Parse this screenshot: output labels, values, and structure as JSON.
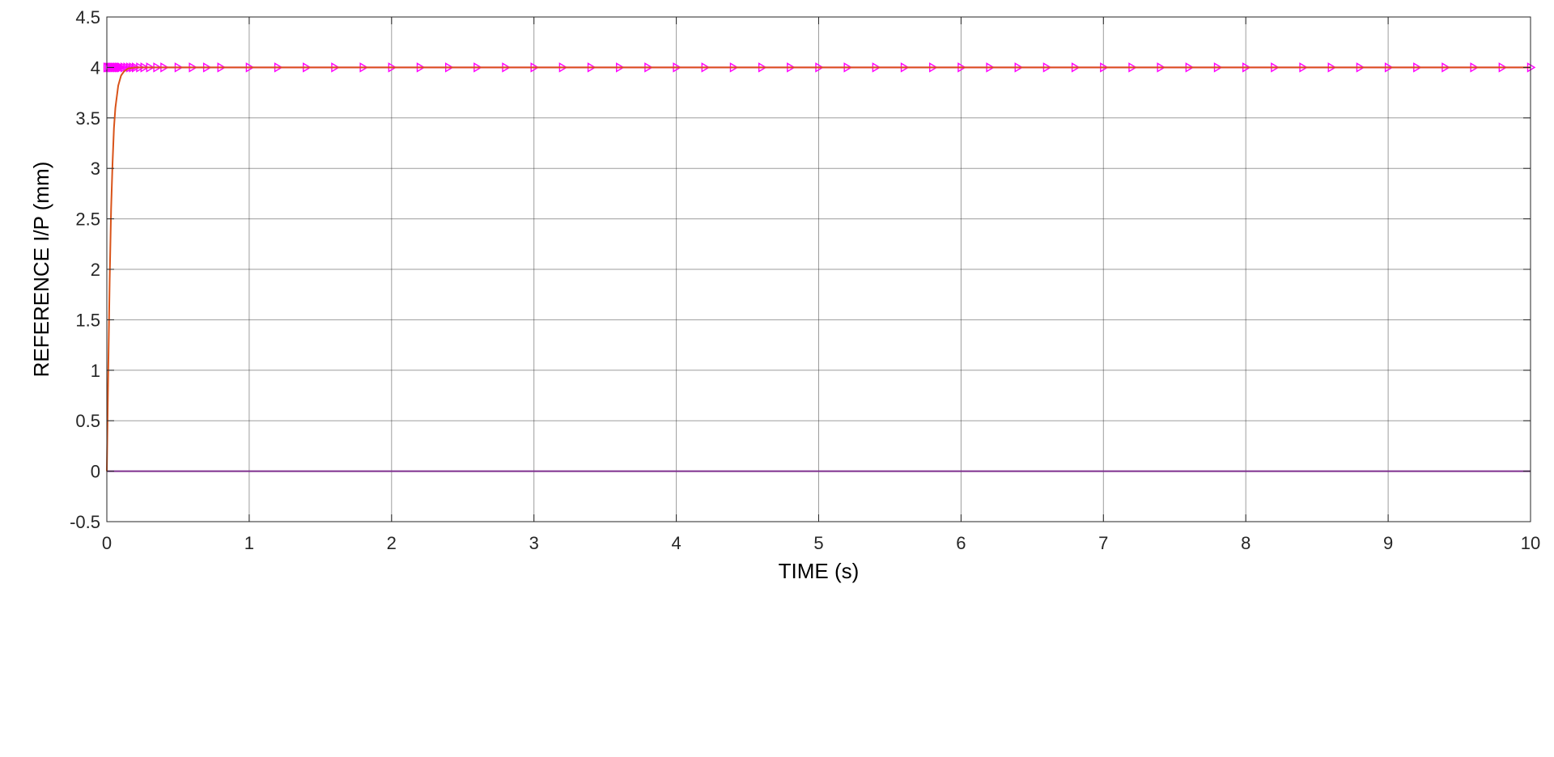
{
  "chart_data": {
    "type": "line",
    "xlabel": "TIME (s)",
    "ylabel": "REFERENCE I/P (mm)",
    "xlim": [
      0,
      10
    ],
    "ylim": [
      -0.5,
      4.5
    ],
    "x_ticks": [
      0,
      1,
      2,
      3,
      4,
      5,
      6,
      7,
      8,
      9,
      10
    ],
    "x_tick_labels": [
      "0",
      "1",
      "2",
      "3",
      "4",
      "5",
      "6",
      "7",
      "8",
      "9",
      "10"
    ],
    "y_ticks": [
      -0.5,
      0,
      0.5,
      1,
      1.5,
      2,
      2.5,
      3,
      3.5,
      4,
      4.5
    ],
    "y_tick_labels": [
      "-0.5",
      "0",
      "0.5",
      "1",
      "1.5",
      "2",
      "2.5",
      "3",
      "3.5",
      "4",
      "4.5"
    ],
    "grid": true,
    "series": [
      {
        "style": "solid line, no markers",
        "color": "#d95319",
        "description": "first-order step response rising from 0 and settling at 4",
        "x": [
          0,
          0.005,
          0.01,
          0.02,
          0.03,
          0.04,
          0.05,
          0.06,
          0.08,
          0.1,
          0.12,
          0.15,
          0.2,
          0.3,
          0.5,
          1,
          2,
          3,
          4,
          5,
          6,
          7,
          8,
          9,
          10
        ],
        "y": [
          0,
          0.5,
          1.0,
          1.9,
          2.6,
          3.05,
          3.4,
          3.6,
          3.82,
          3.92,
          3.96,
          3.99,
          4,
          4,
          4,
          4,
          4,
          4,
          4,
          4,
          4,
          4,
          4,
          4,
          4
        ]
      },
      {
        "style": "solid line with right-pointing triangle markers",
        "color": "#ff00ff",
        "description": "constant reference input at 4; markers densely packed near t=0 and every 0.2 s thereafter",
        "x": [
          0,
          0.01,
          0.02,
          0.03,
          0.04,
          0.05,
          0.06,
          0.07,
          0.08,
          0.09,
          0.1,
          0.12,
          0.14,
          0.16,
          0.18,
          0.2,
          0.23,
          0.26,
          0.3,
          0.35,
          0.4,
          0.5,
          0.6,
          0.7,
          0.8,
          1.0,
          1.2,
          1.4,
          1.6,
          1.8,
          2.0,
          2.2,
          2.4,
          2.6,
          2.8,
          3.0,
          3.2,
          3.4,
          3.6,
          3.8,
          4.0,
          4.2,
          4.4,
          4.6,
          4.8,
          5.0,
          5.2,
          5.4,
          5.6,
          5.8,
          6.0,
          6.2,
          6.4,
          6.6,
          6.8,
          7.0,
          7.2,
          7.4,
          7.6,
          7.8,
          8.0,
          8.2,
          8.4,
          8.6,
          8.8,
          9.0,
          9.2,
          9.4,
          9.6,
          9.8,
          10.0
        ],
        "y": [
          4,
          4,
          4,
          4,
          4,
          4,
          4,
          4,
          4,
          4,
          4,
          4,
          4,
          4,
          4,
          4,
          4,
          4,
          4,
          4,
          4,
          4,
          4,
          4,
          4,
          4,
          4,
          4,
          4,
          4,
          4,
          4,
          4,
          4,
          4,
          4,
          4,
          4,
          4,
          4,
          4,
          4,
          4,
          4,
          4,
          4,
          4,
          4,
          4,
          4,
          4,
          4,
          4,
          4,
          4,
          4,
          4,
          4,
          4,
          4,
          4,
          4,
          4,
          4,
          4,
          4,
          4,
          4,
          4,
          4,
          4
        ]
      },
      {
        "style": "solid line, no markers",
        "color": "#7e2f8e",
        "description": "zero line",
        "x": [
          0,
          10
        ],
        "y": [
          0,
          0
        ]
      }
    ]
  }
}
